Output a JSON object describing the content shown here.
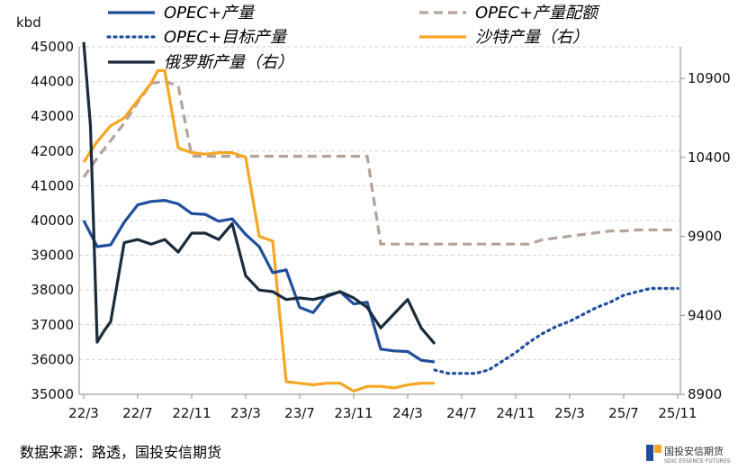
{
  "chart_data": {
    "type": "line",
    "ylabel_left": "kbd",
    "ylim_left": [
      35000,
      45000
    ],
    "ylim_right": [
      8900,
      11100
    ],
    "y_ticks_left": [
      "35000",
      "36000",
      "37000",
      "38000",
      "39000",
      "40000",
      "41000",
      "42000",
      "43000",
      "44000",
      "45000"
    ],
    "y_ticks_right": [
      "8900",
      "9400",
      "9900",
      "10400",
      "10900"
    ],
    "x_ticks": [
      "22/3",
      "22/7",
      "22/11",
      "23/3",
      "23/7",
      "23/11",
      "24/3",
      "24/7",
      "24/11",
      "25/3",
      "25/7",
      "25/11"
    ],
    "series": [
      {
        "name": "OPEC+产量",
        "axis": "left",
        "style": "solid",
        "color": "#1f4e9c",
        "x": [
          0,
          1,
          2,
          3,
          4,
          5,
          6,
          7,
          8,
          9,
          10,
          11,
          12,
          13,
          14,
          15,
          16,
          17,
          18,
          19,
          20,
          21,
          22,
          23,
          24,
          25,
          26
        ],
        "values": [
          40000,
          39250,
          39300,
          39950,
          40450,
          40550,
          40580,
          40480,
          40200,
          40180,
          39980,
          40050,
          39600,
          39250,
          38500,
          38580,
          37500,
          37350,
          37850,
          37950,
          37600,
          37650,
          36300,
          36250,
          36230,
          35980,
          35930
        ]
      },
      {
        "name": "OPEC+目标产量",
        "axis": "left",
        "style": "dotted",
        "color": "#1f4e9c",
        "x": [
          26,
          27,
          28,
          29,
          30,
          31,
          32,
          33,
          34,
          35,
          36,
          37,
          38,
          39,
          40,
          41,
          42,
          43,
          44
        ],
        "values": [
          35700,
          35600,
          35600,
          35600,
          35700,
          35950,
          36200,
          36500,
          36750,
          36950,
          37100,
          37300,
          37500,
          37650,
          37850,
          37950,
          38050,
          38050,
          38050
        ]
      },
      {
        "name": "俄罗斯产量（右）",
        "axis": "right",
        "style": "solid",
        "color": "#1a2b3c",
        "x": [
          0,
          0.5,
          1,
          1.5,
          2,
          3,
          4,
          5,
          6,
          7,
          8,
          9,
          10,
          11,
          12,
          13,
          14,
          15,
          16,
          17,
          18,
          19,
          20,
          21,
          22,
          23,
          24,
          25,
          26
        ],
        "values": [
          11130,
          10600,
          9230,
          9300,
          9360,
          9860,
          9880,
          9850,
          9880,
          9800,
          9920,
          9920,
          9880,
          9980,
          9650,
          9560,
          9550,
          9500,
          9510,
          9500,
          9520,
          9550,
          9510,
          9450,
          9320,
          9410,
          9500,
          9320,
          9220
        ]
      },
      {
        "name": "OPEC+产量配额",
        "axis": "left",
        "style": "dashed",
        "color": "#b3a39b",
        "x": [
          0,
          1,
          2,
          3,
          4,
          5,
          6,
          7,
          8,
          9,
          10,
          11,
          12,
          13,
          14,
          15,
          16,
          17,
          18,
          19,
          20,
          21,
          22,
          23,
          24,
          25,
          26,
          27,
          28,
          29,
          30,
          31,
          32,
          33,
          34,
          35,
          36,
          37,
          38,
          39,
          40,
          41,
          42,
          43,
          44
        ],
        "values": [
          41250,
          41800,
          42300,
          42800,
          43400,
          43950,
          44000,
          43880,
          41850,
          41850,
          41850,
          41850,
          41850,
          41850,
          41850,
          41850,
          41850,
          41850,
          41850,
          41850,
          41850,
          41850,
          39320,
          39320,
          39320,
          39320,
          39320,
          39320,
          39320,
          39320,
          39320,
          39320,
          39320,
          39320,
          39450,
          39500,
          39550,
          39600,
          39650,
          39700,
          39700,
          39730,
          39730,
          39730,
          39730
        ]
      },
      {
        "name": "沙特产量（右）",
        "axis": "right",
        "style": "solid",
        "color": "#f5a623",
        "x": [
          0,
          1,
          2,
          3,
          4,
          5,
          5.5,
          6,
          7,
          8,
          9,
          10,
          11,
          12,
          13,
          14,
          15,
          16,
          17,
          18,
          19,
          20,
          21,
          22,
          23,
          24,
          25,
          26
        ],
        "values": [
          10370,
          10500,
          10600,
          10650,
          10760,
          10870,
          10950,
          10950,
          10460,
          10430,
          10420,
          10430,
          10430,
          10400,
          9900,
          9870,
          8980,
          8970,
          8960,
          8970,
          8970,
          8920,
          8950,
          8950,
          8940,
          8960,
          8970,
          8970
        ]
      }
    ],
    "x_positions_per_tick": 4,
    "legend": [
      {
        "label": "OPEC+产量",
        "color": "#1f4e9c",
        "style": "solid"
      },
      {
        "label": "OPEC+产量配额",
        "color": "#b3a39b",
        "style": "dashed"
      },
      {
        "label": "OPEC+目标产量",
        "color": "#1f4e9c",
        "style": "dotted"
      },
      {
        "label": "沙特产量（右）",
        "color": "#f5a623",
        "style": "solid"
      },
      {
        "label": "俄罗斯产量（右）",
        "color": "#1a2b3c",
        "style": "solid"
      }
    ],
    "grid": "horizontal-dashed"
  },
  "source_note": "数据来源：路透，国投安信期货",
  "brand": {
    "name": "国投安信期货",
    "sub": "SDIC ESSENCE FUTURES",
    "color": "#1f4e9c",
    "accent": "#f5a623"
  }
}
